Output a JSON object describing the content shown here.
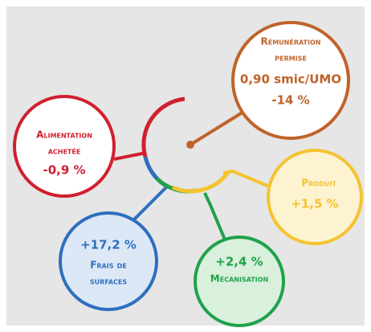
{
  "nodes": [
    {
      "label": "Rémunération",
      "label2": "permise",
      "value": "0,90 smic/UMO",
      "change": "-14 %"
    },
    {
      "label": "Alimentation",
      "label2": "achetée",
      "change": "-0,9 %"
    },
    {
      "label": "Produit",
      "change": "+1,5 %"
    },
    {
      "change": "+17,2 %",
      "label": "Frais de",
      "label2": "surfaces"
    },
    {
      "change": "+2,4 %",
      "label": "Mécanisation"
    }
  ]
}
